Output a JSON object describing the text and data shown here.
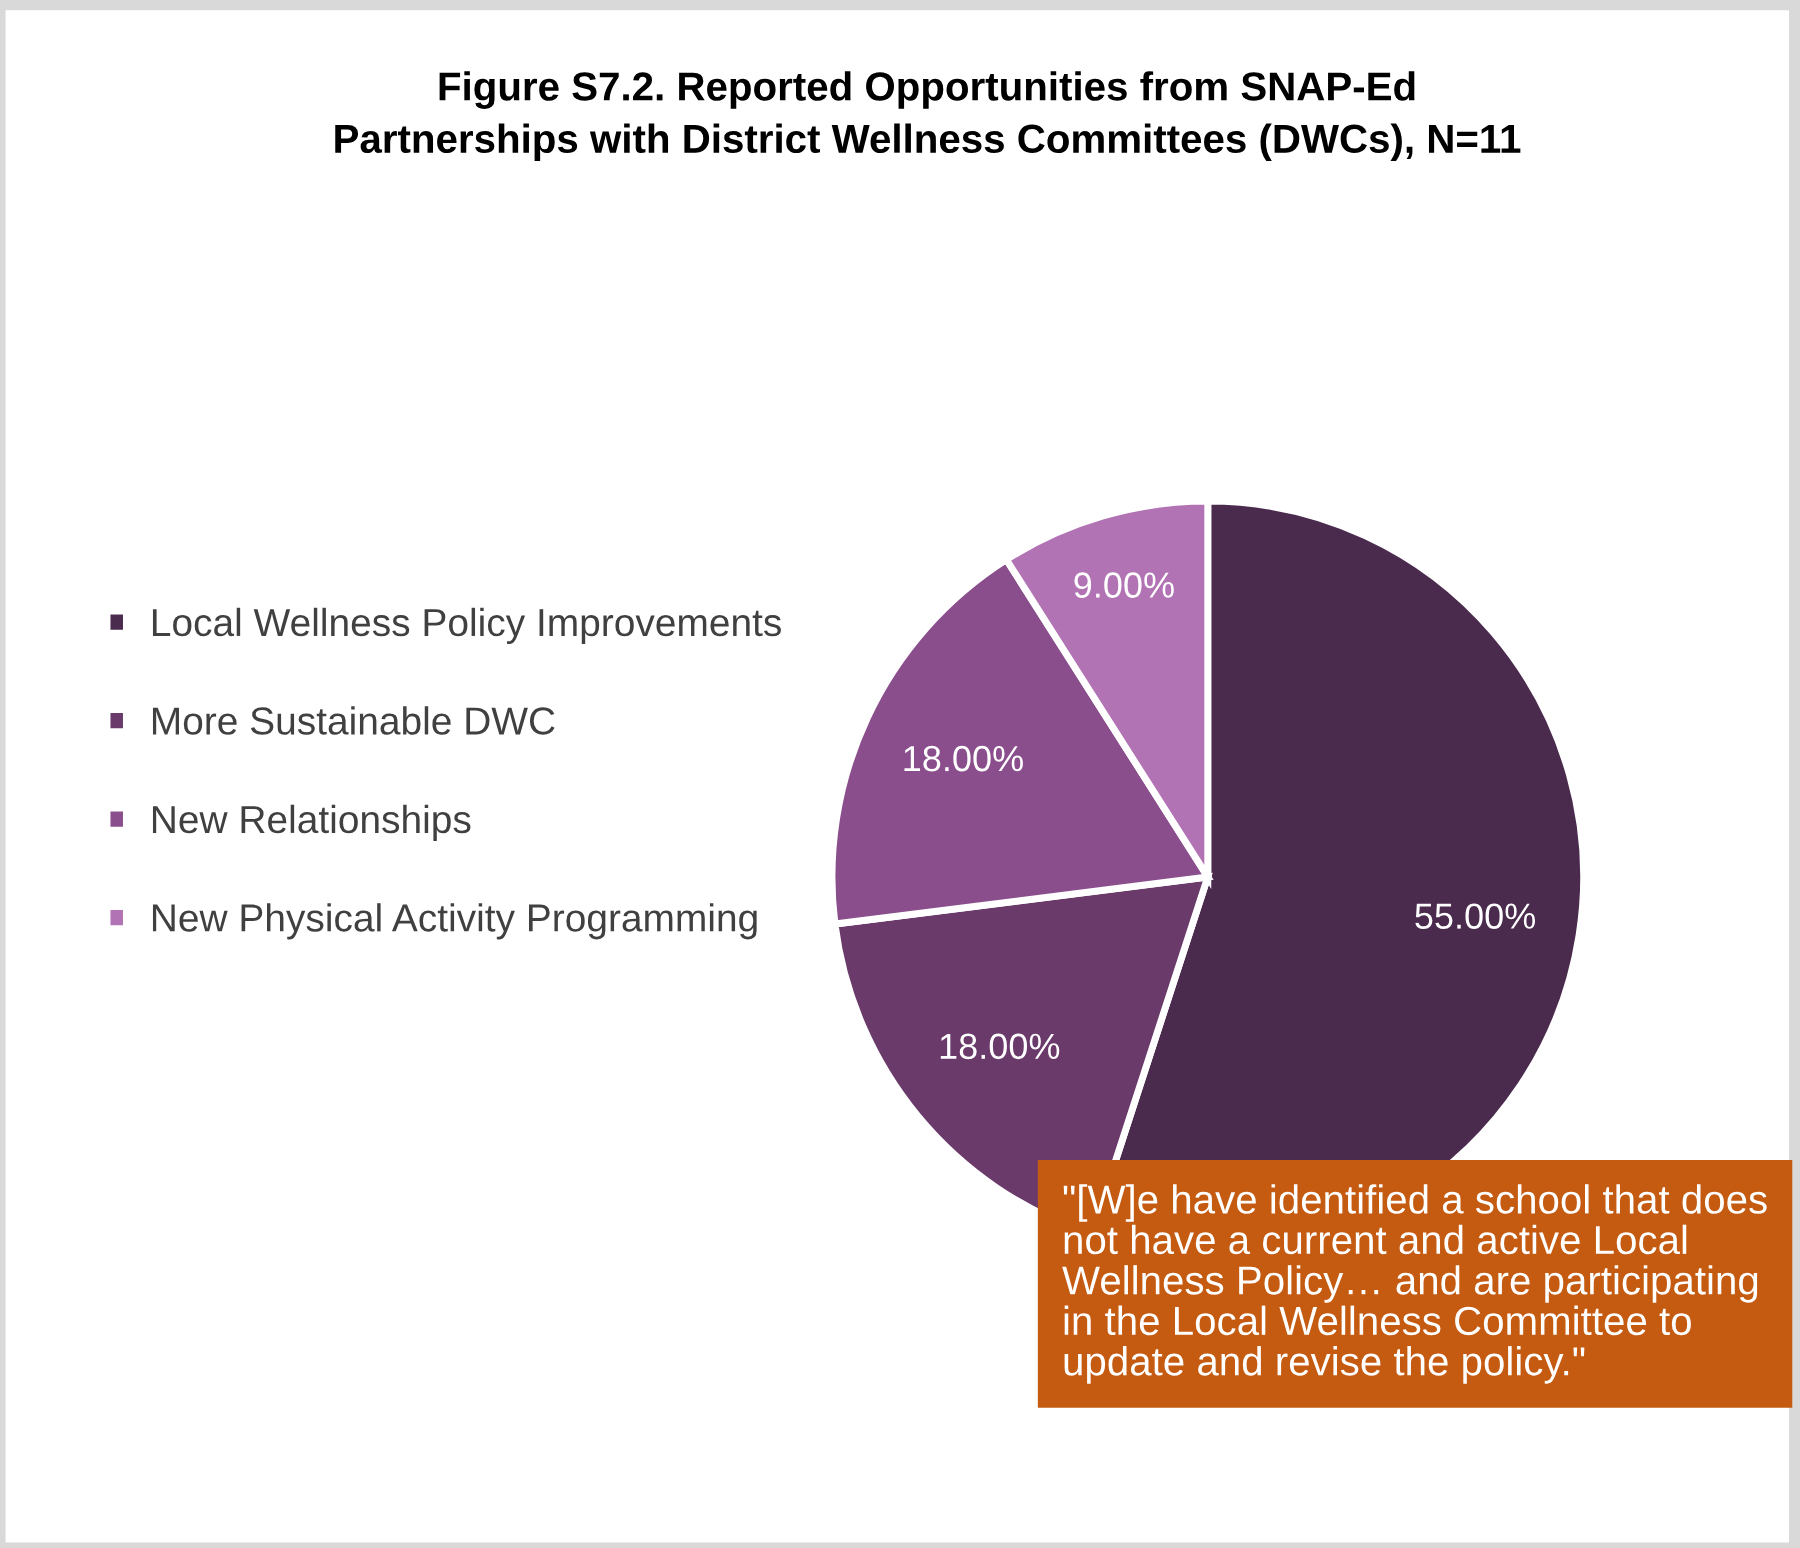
{
  "chart_data": {
    "type": "pie",
    "title": "Figure S7.2. Reported Opportunities from SNAP-Ed\nPartnerships with District Wellness Committees (DWCs), N=11",
    "categories": [
      "Local Wellness Policy Improvements",
      "More Sustainable DWC",
      "New Relationships",
      "New Physical Activity Programming"
    ],
    "values": [
      55,
      18,
      18,
      9
    ],
    "colors": [
      "#4a2a4d",
      "#6a3a6b",
      "#8a4e8c",
      "#b273b5"
    ],
    "value_labels": [
      "55.00%",
      "18.00%",
      "18.00%",
      "9.00%"
    ],
    "legend": "left",
    "annotations": [
      "\"[W]e have identified a school that does not have a current and active Local Wellness Policy… and are participating in the Local Wellness Committee to update and revise the policy.\""
    ]
  }
}
